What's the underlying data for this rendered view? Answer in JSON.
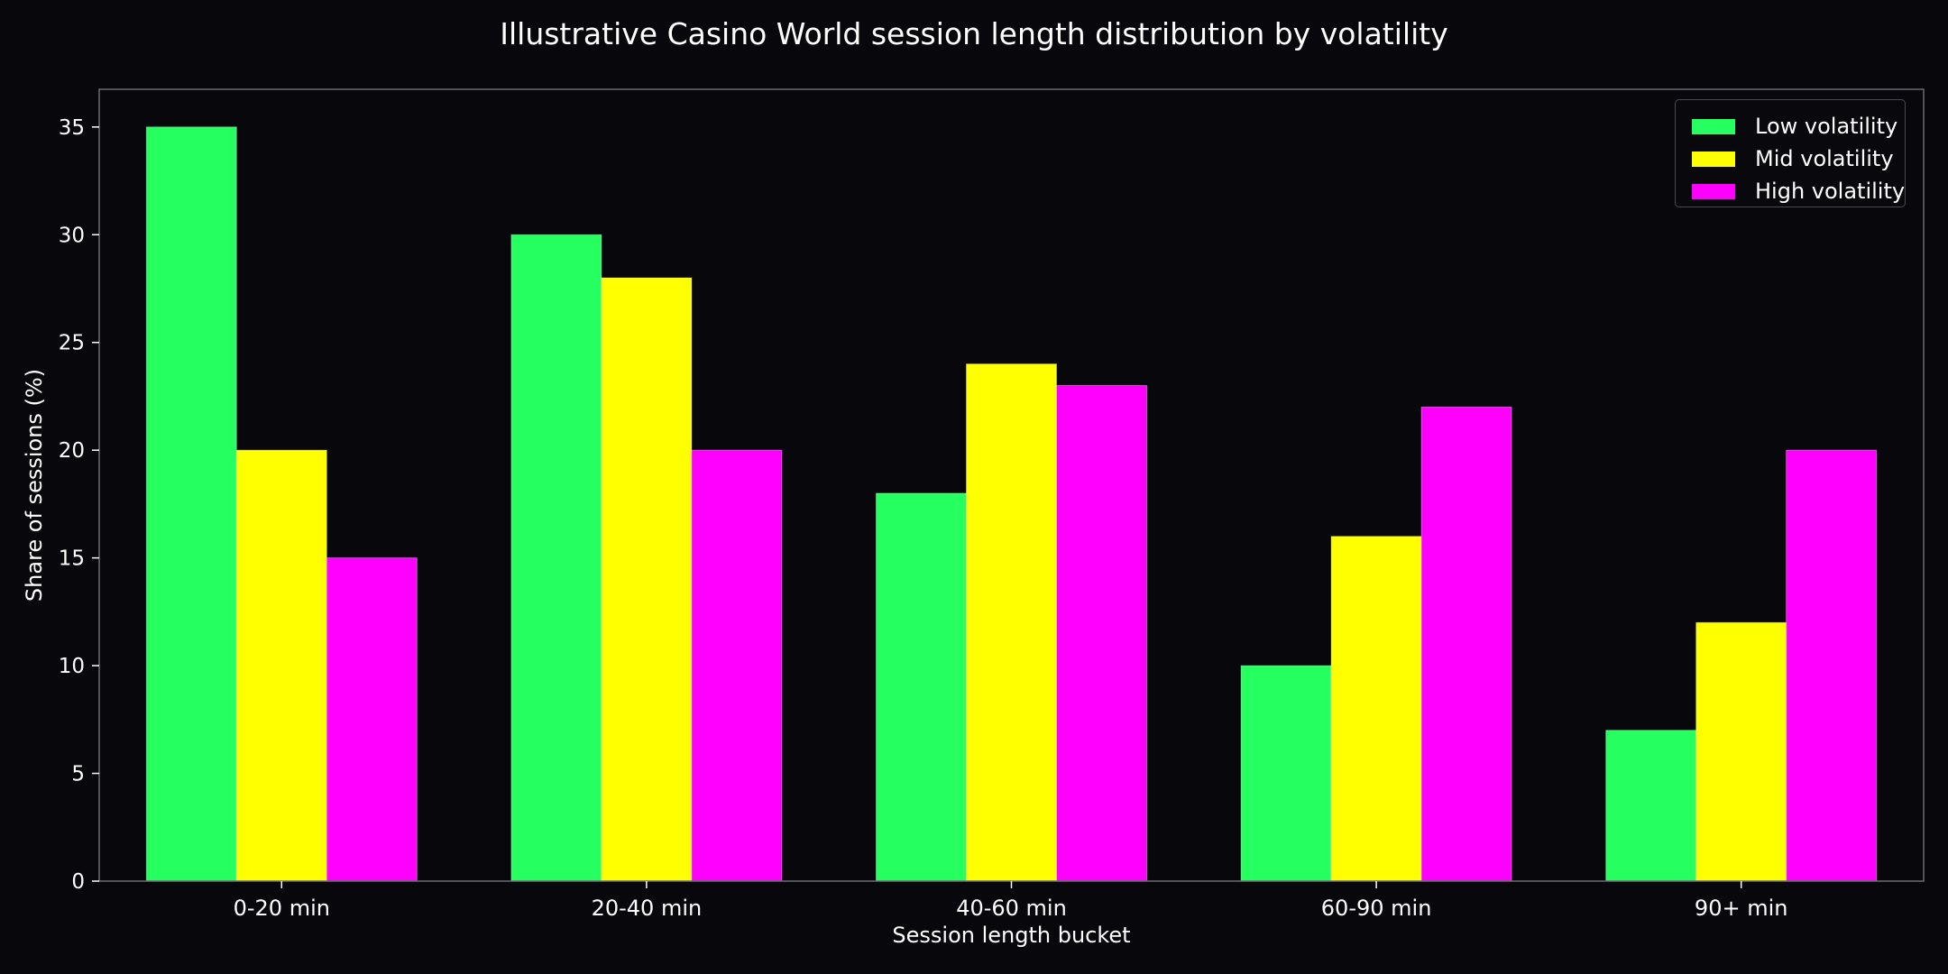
{
  "chart_data": {
    "type": "bar",
    "title": "Illustrative Casino World session length distribution by volatility",
    "xlabel": "Session length bucket",
    "ylabel": "Share of sessions (%)",
    "categories": [
      "0-20 min",
      "20-40 min",
      "40-60 min",
      "60-90 min",
      "90+ min"
    ],
    "series": [
      {
        "name": "Low volatility",
        "color": "#25ff5f",
        "values": [
          35,
          30,
          18,
          10,
          7
        ]
      },
      {
        "name": "Mid volatility",
        "color": "#ffff00",
        "values": [
          20,
          28,
          24,
          16,
          12
        ]
      },
      {
        "name": "High volatility",
        "color": "#ff00ff",
        "values": [
          15,
          20,
          23,
          22,
          20
        ]
      }
    ],
    "ylim": [
      0,
      36.75
    ],
    "yticks": [
      "0",
      "5",
      "10",
      "15",
      "20",
      "25",
      "30",
      "35"
    ],
    "grid": false,
    "legend_position": "top-right",
    "background_color": "#07070c",
    "axis_color": "#6b6b73"
  }
}
